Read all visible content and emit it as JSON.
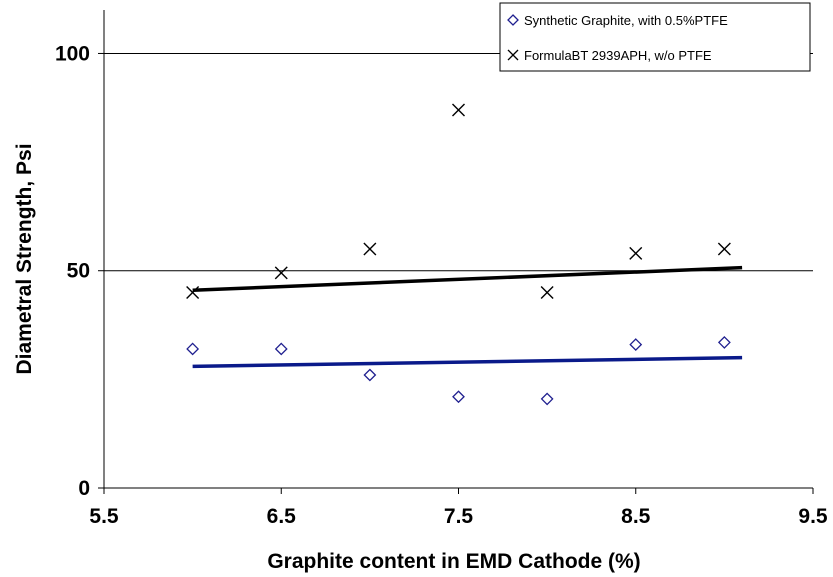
{
  "chart_data": {
    "type": "scatter",
    "title": "",
    "xlabel": "Graphite content in EMD Cathode (%)",
    "ylabel": "Diametral Strength, Psi",
    "xlim": [
      5.5,
      9.5
    ],
    "ylim": [
      0,
      110
    ],
    "x_ticks": [
      "5.5",
      "6.5",
      "7.5",
      "8.5",
      "9.5"
    ],
    "y_ticks": [
      "0",
      "50",
      "100"
    ],
    "grid": "horizontal major gridlines at 50 and 100",
    "legend_position": "top-right",
    "series": [
      {
        "name": "Synthetic Graphite, with 0.5%PTFE",
        "marker": "diamond",
        "color": "#1f1f8f",
        "x": [
          6.0,
          6.5,
          7.0,
          7.5,
          8.0,
          8.5,
          9.0
        ],
        "y": [
          32,
          32,
          26,
          21,
          20.5,
          33,
          33.5
        ],
        "trendline": {
          "x": [
            6.0,
            9.1
          ],
          "y": [
            28,
            30
          ],
          "color": "#0a1a8a"
        }
      },
      {
        "name": "FormulaBT 2939APH, w/o PTFE",
        "marker": "x",
        "color": "#000000",
        "x": [
          6.0,
          6.5,
          7.0,
          7.5,
          8.0,
          8.5,
          9.0
        ],
        "y": [
          45,
          49.5,
          55,
          87,
          45,
          54,
          55
        ],
        "trendline": {
          "x": [
            6.0,
            9.1
          ],
          "y": [
            45.5,
            50.7
          ],
          "color": "#000000"
        }
      }
    ]
  }
}
